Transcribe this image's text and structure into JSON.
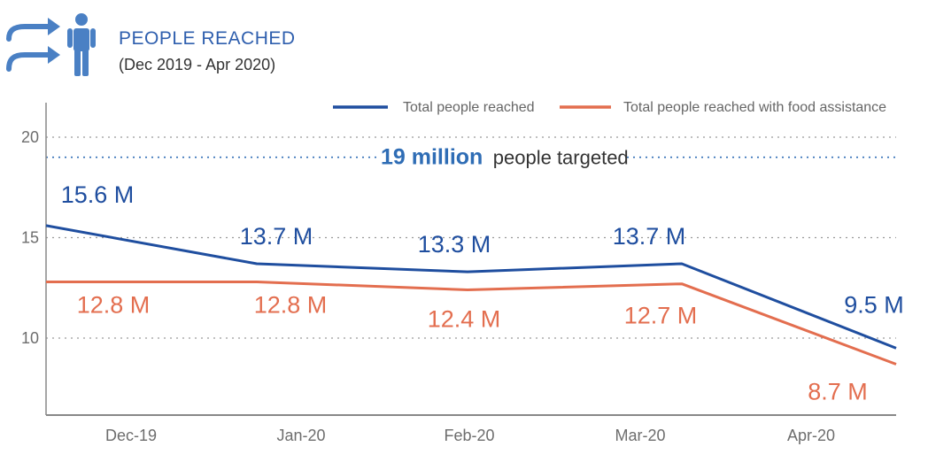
{
  "header": {
    "title": "PEOPLE REACHED",
    "subtitle": "(Dec 2019 - Apr 2020)",
    "icon": "people-reached-icon"
  },
  "colors": {
    "total": "#1f4e9f",
    "food": "#e36e4f",
    "target": "#2f6db5",
    "grid": "#9a9a9a",
    "axis": "#888888"
  },
  "target": {
    "value": 19,
    "strong": "19 million",
    "rest": "people targeted"
  },
  "chart_data": {
    "type": "line",
    "categories": [
      "Dec-19",
      "Jan-20",
      "Feb-20",
      "Mar-20",
      "Apr-20"
    ],
    "ylim": [
      7,
      22
    ],
    "yticks": [
      10,
      15,
      20
    ],
    "grid": "horizontal dotted",
    "legend_position": "top-right",
    "series": [
      {
        "name": "Total people reached",
        "x": [
          0,
          1,
          2,
          3,
          4
        ],
        "values": [
          15.6,
          13.7,
          13.3,
          13.7,
          9.5
        ],
        "labels": [
          "15.6 M",
          "13.7 M",
          "13.3 M",
          "13.7 M",
          "9.5 M"
        ]
      },
      {
        "name": "Total people reached with food assistance",
        "x": [
          0,
          1,
          2,
          3,
          4
        ],
        "values": [
          12.8,
          12.8,
          12.4,
          12.7,
          8.7
        ],
        "labels": [
          "12.8 M",
          "12.8 M",
          "12.4 M",
          "12.7 M",
          "8.7 M"
        ]
      }
    ]
  }
}
